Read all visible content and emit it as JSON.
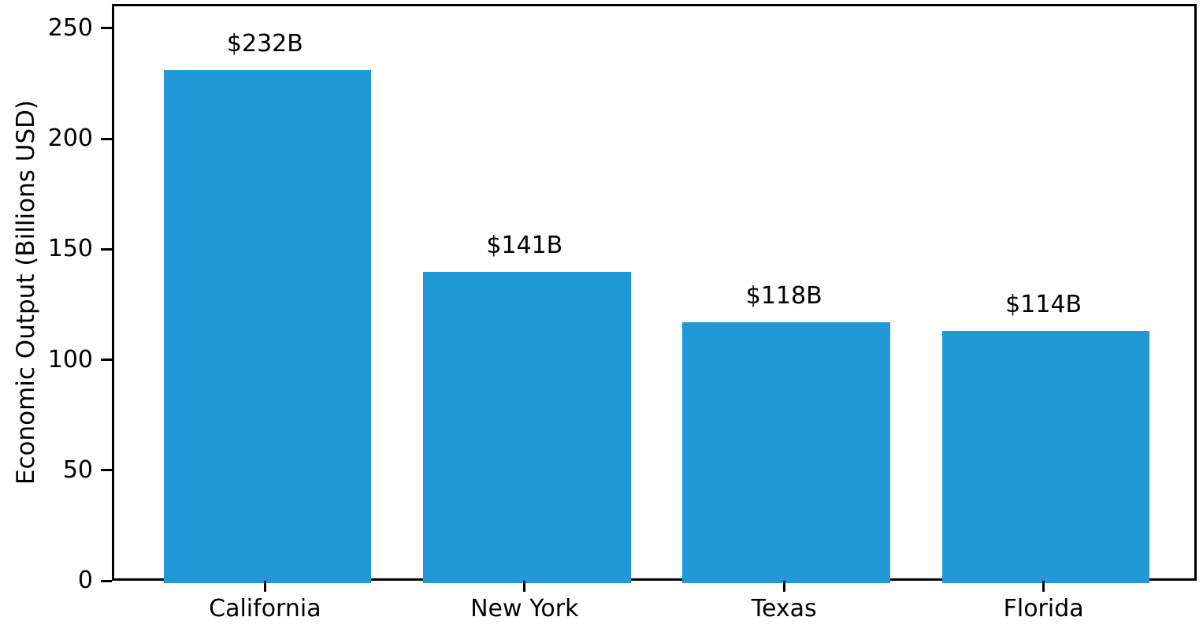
{
  "chart_data": {
    "type": "bar",
    "title": "",
    "categories": [
      "California",
      "New York",
      "Texas",
      "Florida"
    ],
    "values": [
      232,
      141,
      118,
      114
    ],
    "bar_labels": [
      "$232B",
      "$141B",
      "$118B",
      "$114B"
    ],
    "xlabel": "",
    "ylabel": "Economic Output (Billions USD)",
    "yticks": [
      0,
      50,
      100,
      150,
      200,
      250
    ],
    "ylim": [
      0,
      261
    ],
    "xlim": [
      -0.59,
      3.59
    ],
    "bar_width_units": 0.8,
    "bar_color": "#2199d6",
    "axis_color": "#000000",
    "text_color": "#000000",
    "grid": false,
    "legend": null
  }
}
